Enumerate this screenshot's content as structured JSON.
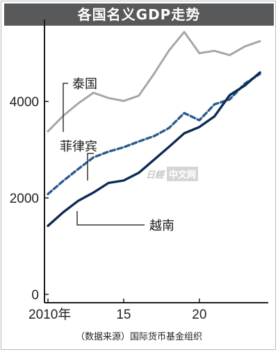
{
  "title": "各国名义GDP走势",
  "source": "（数据来源）国际货币基金组织",
  "watermark": {
    "logo": "日經",
    "text": "中文网"
  },
  "colors": {
    "thailand": "#a6a6a6",
    "philippines": "#2b5c8f",
    "vietnam": "#0d2a55",
    "title_bg": "#58595b"
  },
  "chart_data": {
    "type": "line",
    "title": "各国名义GDP走势",
    "x": [
      2010,
      2011,
      2012,
      2013,
      2014,
      2015,
      2016,
      2017,
      2018,
      2019,
      2020,
      2021,
      2022,
      2023,
      2024
    ],
    "x_ticks": [
      {
        "value": 2010,
        "label": "2010年"
      },
      {
        "value": 2015,
        "label": "15"
      },
      {
        "value": 2020,
        "label": "20"
      }
    ],
    "y_ticks": [
      0,
      2000,
      4000
    ],
    "xlim": [
      2010,
      2024
    ],
    "ylim": [
      0,
      5700
    ],
    "series": [
      {
        "name": "泰国",
        "style": "solid",
        "values": [
          3380,
          3700,
          3960,
          4180,
          4070,
          4010,
          4120,
          4570,
          5060,
          5440,
          5000,
          5050,
          4960,
          5140,
          5250
        ]
      },
      {
        "name": "菲律宾",
        "style": "dashed",
        "values": [
          2080,
          2350,
          2600,
          2840,
          2960,
          3050,
          3170,
          3280,
          3450,
          3760,
          3610,
          3940,
          4040,
          4370,
          4570
        ]
      },
      {
        "name": "越南",
        "style": "solid",
        "values": [
          1420,
          1700,
          1940,
          2110,
          2310,
          2360,
          2520,
          2790,
          3060,
          3340,
          3470,
          3690,
          4130,
          4330,
          4600
        ]
      }
    ]
  }
}
